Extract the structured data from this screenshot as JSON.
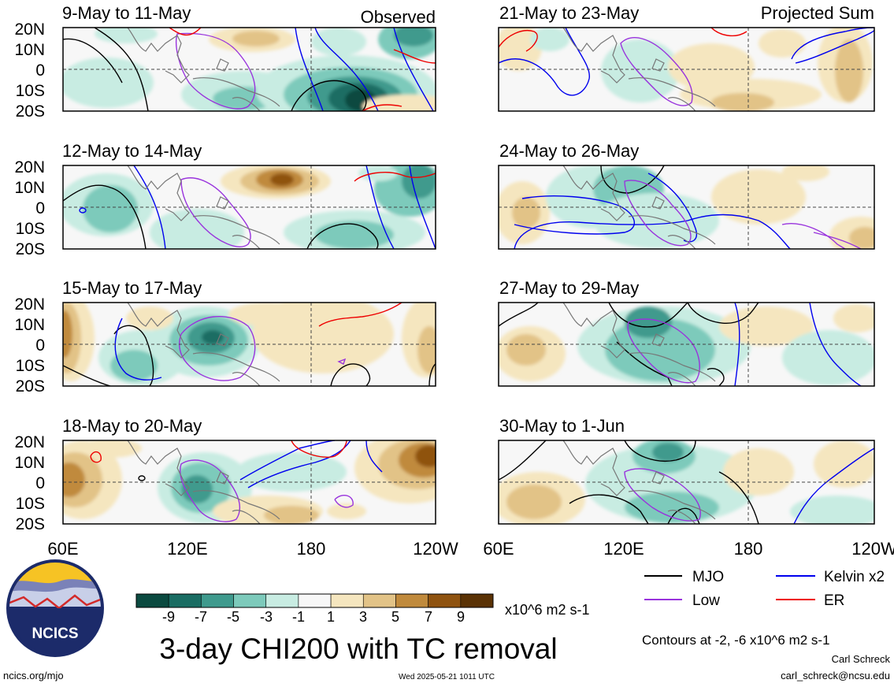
{
  "header": {
    "observed_label": "Observed",
    "projected_label": "Projected Sum"
  },
  "panels_left": [
    {
      "date": "9-May to 11-May"
    },
    {
      "date": "12-May to 14-May"
    },
    {
      "date": "15-May to 17-May"
    },
    {
      "date": "18-May to 20-May"
    }
  ],
  "panels_right": [
    {
      "date": "21-May to 23-May"
    },
    {
      "date": "24-May to 26-May"
    },
    {
      "date": "27-May to 29-May"
    },
    {
      "date": "30-May to 1-Jun"
    }
  ],
  "lat_labels": [
    "20N",
    "10N",
    "0",
    "10S",
    "20S"
  ],
  "lon_labels": [
    "60E",
    "120E",
    "180",
    "120W"
  ],
  "colorbar": {
    "tick_labels": [
      "-9",
      "-7",
      "-5",
      "-3",
      "-1",
      "1",
      "3",
      "5",
      "7",
      "9"
    ],
    "colors": [
      "#0b4a40",
      "#1a6d63",
      "#3f9a8d",
      "#7dcabb",
      "#c8ece2",
      "#f7f7f7",
      "#f5e6bf",
      "#e2c387",
      "#c08a3c",
      "#8f5310",
      "#5a3205"
    ],
    "units": "x10^6 m2 s-1"
  },
  "legend": {
    "items": [
      {
        "label": "MJO",
        "color": "#000000"
      },
      {
        "label": "Kelvin x2",
        "color": "#0000ee"
      },
      {
        "label": "Low",
        "color": "#9933dd"
      },
      {
        "label": "ER",
        "color": "#ee0000"
      }
    ],
    "contours_note": "Contours at -2, -6 x10^6 m2 s-1"
  },
  "title": "3-day CHI200 with TC removal",
  "logo_text": "NCICS",
  "footer": {
    "url": "ncics.org/mjo",
    "timestamp": "Wed 2025-05-21 1011 UTC",
    "author": "Carl Schreck",
    "email": "carl_schreck@ncsu.edu"
  }
}
